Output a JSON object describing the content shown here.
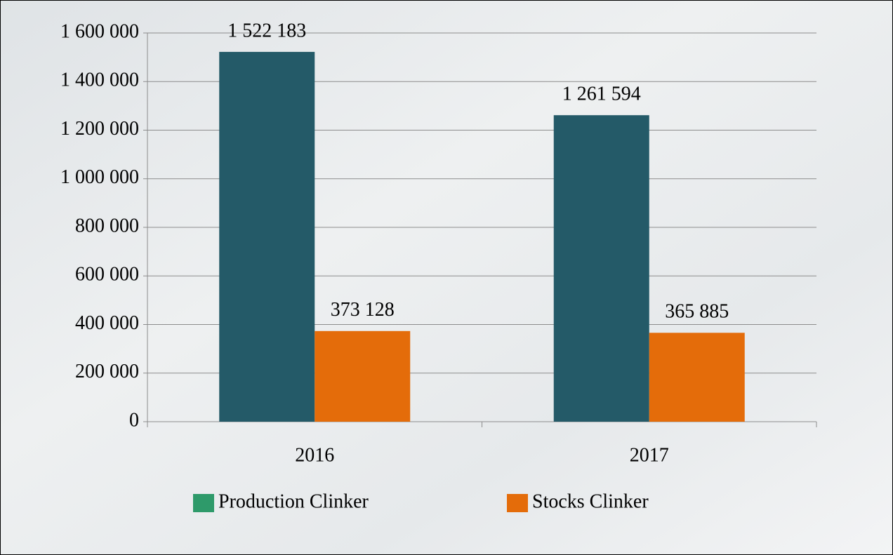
{
  "chart_data": {
    "type": "bar",
    "categories": [
      "2016",
      "2017"
    ],
    "series": [
      {
        "name": "Production Clinker",
        "color": "#245a68",
        "legend_color": "#2e9a6a",
        "values": [
          1522183,
          1261594
        ],
        "value_labels": [
          "1 522 183",
          "1 261 594"
        ]
      },
      {
        "name": "Stocks Clinker",
        "color": "#e46c0a",
        "legend_color": "#e46c0a",
        "values": [
          373128,
          365885
        ],
        "value_labels": [
          "373 128",
          "365 885"
        ]
      }
    ],
    "ylim": [
      0,
      1600000
    ],
    "yticks": [
      0,
      {
        "value": 200000,
        "label": "200 000"
      },
      {
        "value": 400000,
        "label": "400 000"
      },
      {
        "value": 600000,
        "label": "600 000"
      },
      {
        "value": 800000,
        "label": "800 000"
      },
      {
        "value": 1000000,
        "label": "1 000 000"
      },
      {
        "value": 1200000,
        "label": "1 200 000"
      },
      {
        "value": 1400000,
        "label": "1 400 000"
      },
      {
        "value": 1600000,
        "label": "1 600 000"
      }
    ],
    "grid": true,
    "legend": "bottom"
  }
}
